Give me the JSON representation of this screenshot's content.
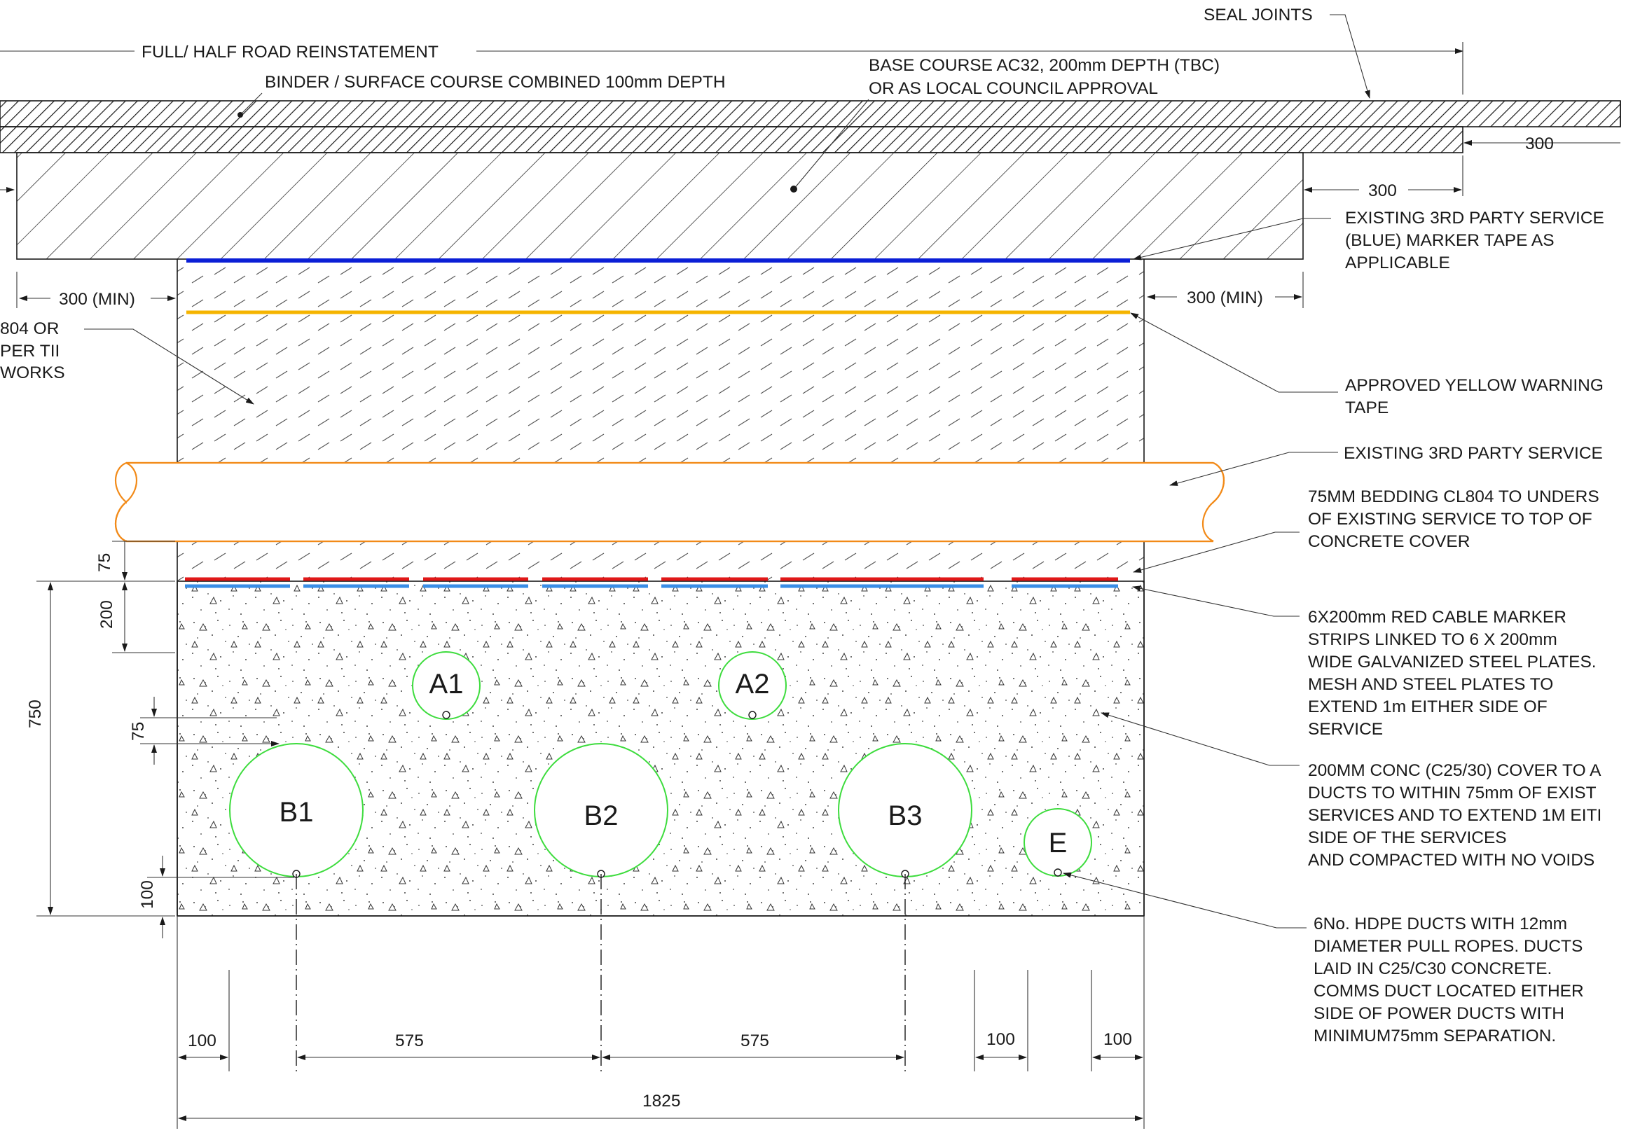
{
  "labels": {
    "seal_joints": "SEAL JOINTS",
    "road_reinstatement": "FULL/ HALF ROAD REINSTATEMENT",
    "binder_course": "BINDER / SURFACE COURSE COMBINED 100mm DEPTH",
    "base_course": [
      "BASE COURSE AC32, 200mm DEPTH (TBC)",
      "OR AS LOCAL COUNCIL APPROVAL"
    ],
    "backfill": [
      "804 OR",
      "PER TII",
      "WORKS"
    ],
    "blue_tape": [
      "EXISTING 3RD PARTY SERVICE",
      "(BLUE) MARKER TAPE AS",
      "APPLICABLE"
    ],
    "yellow_tape": [
      "APPROVED YELLOW WARNING",
      "TAPE"
    ],
    "existing_service": "EXISTING 3RD PARTY SERVICE",
    "bedding": [
      "75MM BEDDING  CL804 TO UNDERS",
      "OF EXISTING SERVICE TO TOP OF",
      "CONCRETE COVER"
    ],
    "red_strips": [
      "6X200mm RED CABLE MARKER",
      "STRIPS LINKED TO 6 X 200mm",
      "WIDE GALVANIZED STEEL PLATES.",
      "MESH AND STEEL PLATES TO",
      "EXTEND 1m EITHER SIDE OF",
      "SERVICE"
    ],
    "concrete_cover": [
      "200MM CONC (C25/30) COVER TO A",
      "DUCTS TO  WITHIN 75mm OF EXIST",
      "SERVICES AND TO EXTEND 1M EITI",
      "SIDE OF THE SERVICES",
      "AND  COMPACTED WITH NO VOIDS"
    ],
    "hdpe_ducts": [
      "6No. HDPE DUCTS WITH 12mm",
      "DIAMETER PULL ROPES. DUCTS",
      "LAID IN C25/C30 CONCRETE.",
      "COMMS DUCT LOCATED EITHER",
      "SIDE OF POWER DUCTS WITH",
      "MINIMUM75mm SEPARATION."
    ]
  },
  "ducts": [
    "A1",
    "A2",
    "B1",
    "B2",
    "B3",
    "E"
  ],
  "dimensions": {
    "d300_right_top": "300",
    "d300_right_mid": "300",
    "d300_min_left": "300 (MIN)",
    "d300_min_right": "300 (MIN)",
    "v75_upper": "75",
    "v200": "200",
    "v750": "750",
    "v75_lower": "75",
    "v100": "100",
    "h100_left": "100",
    "h575_a": "575",
    "h575_b": "575",
    "h100_r1": "100",
    "h100_r2": "100",
    "h1825": "1825"
  },
  "colors": {
    "blue_tape": "#0b1fd6",
    "yellow_tape": "#f5b400",
    "red_strip": "#e01818",
    "light_blue_strip": "#3a8ee6",
    "existing_service": "#f28a18",
    "duct_outline": "#3ddc3d"
  }
}
